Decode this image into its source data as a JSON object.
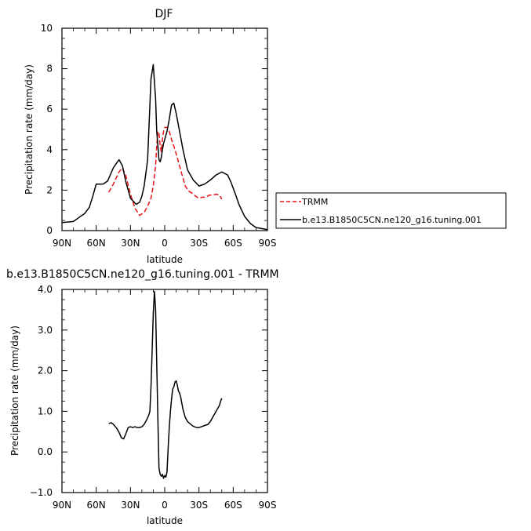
{
  "chart_data": [
    {
      "type": "line",
      "title": "DJF",
      "xlabel": "latitude",
      "ylabel": "Precipitation rate (mm/day)",
      "xlim": [
        90,
        -90
      ],
      "ylim": [
        0,
        10
      ],
      "x_ticks": [
        90,
        60,
        30,
        0,
        -30,
        -60,
        -90
      ],
      "x_tick_labels": [
        "90N",
        "60N",
        "30N",
        "0",
        "30S",
        "60S",
        "90S"
      ],
      "y_ticks": [
        0,
        2,
        4,
        6,
        8,
        10
      ],
      "y_tick_labels": [
        "0",
        "2",
        "4",
        "6",
        "8",
        "10"
      ],
      "legend_position": "right",
      "series": [
        {
          "name": "TRMM",
          "color": "#e8141a",
          "dash": "dashed",
          "x": [
            49,
            45,
            40,
            37,
            34,
            30,
            26,
            22,
            18,
            15,
            12,
            10,
            8,
            7,
            6,
            5,
            4,
            3,
            2,
            1,
            0,
            -2,
            -4,
            -6,
            -9,
            -12,
            -15,
            -18,
            -21,
            -24,
            -27,
            -30,
            -33,
            -36,
            -39,
            -42,
            -45,
            -48,
            -50
          ],
          "y": [
            1.9,
            2.3,
            2.9,
            3.1,
            2.7,
            1.8,
            1.1,
            0.75,
            0.9,
            1.2,
            1.6,
            2.2,
            3.2,
            4.2,
            4.9,
            4.8,
            4.2,
            3.9,
            4.5,
            4.9,
            5.1,
            5.1,
            4.9,
            4.5,
            4.0,
            3.4,
            2.8,
            2.2,
            1.95,
            1.85,
            1.7,
            1.6,
            1.65,
            1.65,
            1.75,
            1.75,
            1.8,
            1.75,
            1.55
          ]
        },
        {
          "name": "b.e13.B1850C5CN.ne120_g16.tuning.001",
          "color": "#000000",
          "dash": "solid",
          "x": [
            90,
            80,
            75,
            70,
            66,
            63,
            60,
            57,
            54,
            50,
            45,
            42,
            40,
            37,
            34,
            30,
            25,
            22,
            20,
            18,
            15,
            12,
            10,
            8,
            7,
            6,
            5,
            4,
            3,
            2,
            1,
            0,
            -2,
            -4,
            -6,
            -8,
            -10,
            -12,
            -14,
            -16,
            -18,
            -20,
            -25,
            -30,
            -35,
            -40,
            -45,
            -50,
            -55,
            -58,
            -62,
            -65,
            -70,
            -75,
            -80,
            -85,
            -90
          ],
          "y": [
            0.4,
            0.45,
            0.65,
            0.85,
            1.15,
            1.7,
            2.3,
            2.3,
            2.3,
            2.45,
            3.1,
            3.35,
            3.5,
            3.2,
            2.4,
            1.6,
            1.3,
            1.4,
            1.7,
            2.2,
            3.5,
            7.5,
            8.2,
            6.5,
            4.9,
            4.2,
            3.5,
            3.4,
            3.6,
            4.0,
            4.3,
            4.5,
            4.9,
            5.5,
            6.2,
            6.3,
            5.8,
            5.2,
            4.6,
            4.0,
            3.5,
            3.0,
            2.5,
            2.2,
            2.3,
            2.5,
            2.75,
            2.9,
            2.75,
            2.4,
            1.8,
            1.3,
            0.7,
            0.35,
            0.15,
            0.1,
            0.05
          ]
        }
      ]
    },
    {
      "type": "line",
      "title": "b.e13.B1850C5CN.ne120_g16.tuning.001 - TRMM",
      "xlabel": "latitude",
      "ylabel": "Precipitation rate (mm/day)",
      "xlim": [
        90,
        -90
      ],
      "ylim": [
        -1.0,
        4.0
      ],
      "x_ticks": [
        90,
        60,
        30,
        0,
        -30,
        -60,
        -90
      ],
      "x_tick_labels": [
        "90N",
        "60N",
        "30N",
        "0",
        "30S",
        "60S",
        "90S"
      ],
      "y_ticks": [
        -1,
        0,
        1,
        2,
        3,
        4
      ],
      "y_tick_labels": [
        "−1.0",
        "0.0",
        "1.0",
        "2.0",
        "3.0",
        "4.0"
      ],
      "series": [
        {
          "color": "#000000",
          "dash": "solid",
          "x": [
            49,
            47,
            45,
            42,
            40,
            38,
            36,
            34,
            32,
            30,
            28,
            26,
            24,
            22,
            20,
            18,
            16,
            14,
            13,
            12,
            11,
            10,
            9,
            8,
            7,
            6,
            5,
            4,
            3,
            2,
            1,
            0,
            -1,
            -2,
            -3,
            -4,
            -5,
            -6,
            -7,
            -8,
            -9,
            -10,
            -11,
            -12,
            -13,
            -14,
            -15,
            -16,
            -17,
            -18,
            -20,
            -22,
            -24,
            -26,
            -28,
            -30,
            -32,
            -35,
            -38,
            -40,
            -42,
            -44,
            -46,
            -48,
            -49,
            -50
          ],
          "y": [
            0.7,
            0.72,
            0.68,
            0.58,
            0.48,
            0.35,
            0.32,
            0.45,
            0.6,
            0.62,
            0.6,
            0.62,
            0.6,
            0.6,
            0.62,
            0.68,
            0.78,
            0.9,
            1.0,
            1.6,
            2.5,
            3.4,
            3.95,
            3.5,
            2.2,
            0.8,
            -0.4,
            -0.55,
            -0.6,
            -0.55,
            -0.65,
            -0.58,
            -0.62,
            -0.5,
            0.1,
            0.6,
            1.0,
            1.3,
            1.55,
            1.6,
            1.72,
            1.75,
            1.65,
            1.5,
            1.45,
            1.35,
            1.2,
            1.05,
            0.95,
            0.85,
            0.75,
            0.7,
            0.65,
            0.62,
            0.6,
            0.6,
            0.62,
            0.65,
            0.68,
            0.75,
            0.85,
            0.95,
            1.05,
            1.15,
            1.25,
            1.32
          ]
        }
      ]
    }
  ]
}
